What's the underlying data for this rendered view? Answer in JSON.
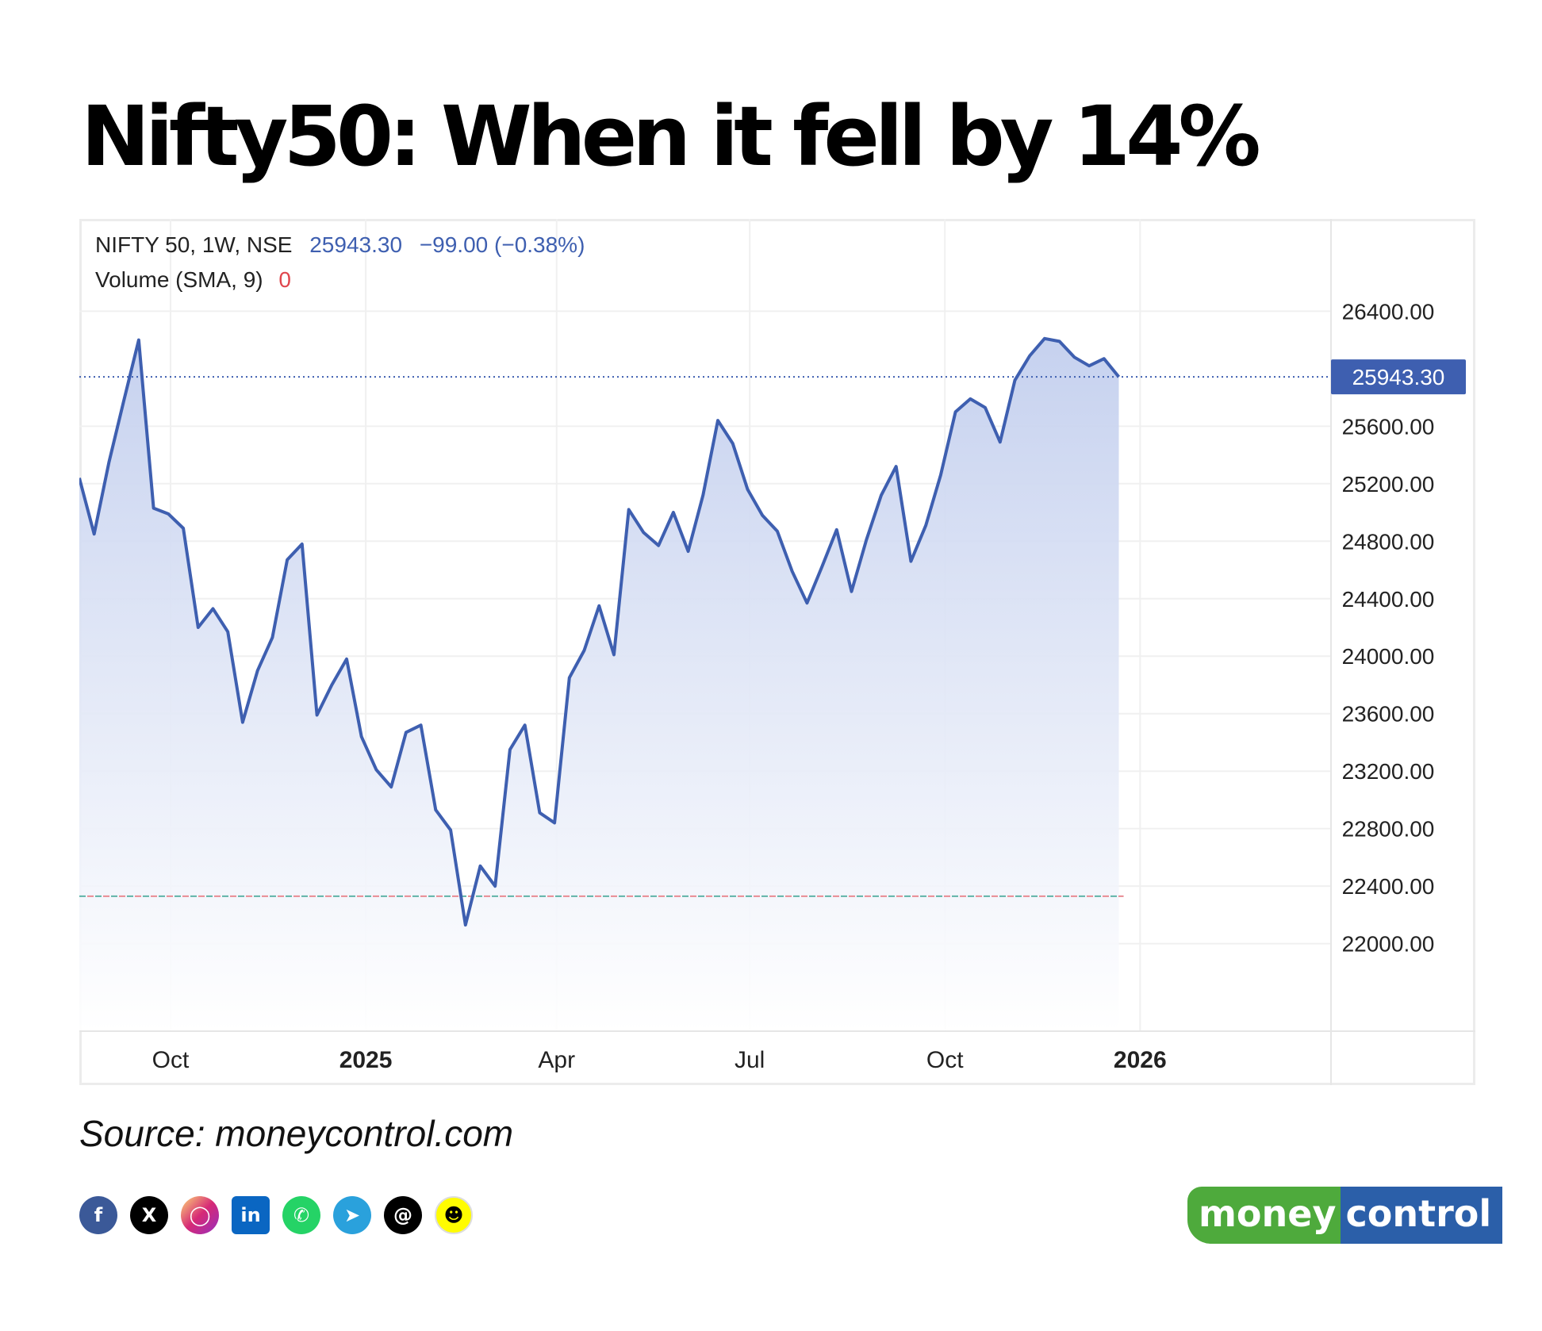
{
  "title": "Nifty50: When it fell by 14%",
  "source": "Source: moneycontrol.com",
  "social_icons": [
    "facebook-icon",
    "x-icon",
    "instagram-icon",
    "linkedin-icon",
    "whatsapp-icon",
    "telegram-icon",
    "threads-icon",
    "snapchat-icon"
  ],
  "logo": {
    "part1": "money",
    "part2": "control"
  },
  "colors": {
    "line": "#3e5fb0",
    "fill_top": "#c8d3ee",
    "price_tag": "#3e5fb0",
    "volume_value": "#e0464d",
    "logo_green": "#4eaa3c",
    "logo_blue": "#2b5fa9"
  },
  "chart_data": {
    "type": "area",
    "header": {
      "symbol": "NIFTY 50, 1W, NSE",
      "price": "25943.30",
      "change": "−99.00 (−0.38%)",
      "volume_label": "Volume (SMA, 9)",
      "volume_value": "0"
    },
    "last_price_label": "25943.30",
    "ylim": [
      21700,
      26700
    ],
    "yticks": [
      "26400.00",
      "25600.00",
      "25200.00",
      "24800.00",
      "24400.00",
      "24000.00",
      "23600.00",
      "23200.00",
      "22800.00",
      "22400.00",
      "22000.00"
    ],
    "ytick_values": [
      26400,
      25600,
      25200,
      24800,
      24400,
      24000,
      23600,
      23200,
      22800,
      22400,
      22000
    ],
    "xticks": [
      {
        "label": "Oct",
        "date": "2024-10-01",
        "bold": false
      },
      {
        "label": "2025",
        "date": "2025-01-01",
        "bold": true
      },
      {
        "label": "Apr",
        "date": "2025-04-01",
        "bold": false
      },
      {
        "label": "Jul",
        "date": "2025-07-01",
        "bold": false
      },
      {
        "label": "Oct",
        "date": "2025-10-01",
        "bold": false
      },
      {
        "label": "2026",
        "date": "2026-01-01",
        "bold": true
      }
    ],
    "x_range": [
      "2024-08-19",
      "2026-04-01"
    ],
    "volume_line_value": 22330,
    "series": [
      {
        "dates": [
          "2024-08-19",
          "2024-08-26",
          "2024-09-02",
          "2024-09-09",
          "2024-09-16",
          "2024-09-23",
          "2024-09-30",
          "2024-10-07",
          "2024-10-14",
          "2024-10-21",
          "2024-10-28",
          "2024-11-04",
          "2024-11-11",
          "2024-11-18",
          "2024-11-25",
          "2024-12-02",
          "2024-12-09",
          "2024-12-16",
          "2024-12-23",
          "2024-12-30",
          "2025-01-06",
          "2025-01-13",
          "2025-01-20",
          "2025-01-27",
          "2025-02-03",
          "2025-02-10",
          "2025-02-17",
          "2025-02-24",
          "2025-03-03",
          "2025-03-10",
          "2025-03-17",
          "2025-03-24",
          "2025-03-31",
          "2025-04-07",
          "2025-04-14",
          "2025-04-21",
          "2025-04-28",
          "2025-05-05",
          "2025-05-12",
          "2025-05-19",
          "2025-05-26",
          "2025-06-02",
          "2025-06-09",
          "2025-06-16",
          "2025-06-23",
          "2025-06-30",
          "2025-07-07",
          "2025-07-14",
          "2025-07-21",
          "2025-07-28",
          "2025-08-04",
          "2025-08-11",
          "2025-08-18",
          "2025-08-25",
          "2025-09-01",
          "2025-09-08",
          "2025-09-15",
          "2025-09-22",
          "2025-09-29",
          "2025-10-06",
          "2025-10-13",
          "2025-10-20",
          "2025-10-27",
          "2025-11-03",
          "2025-11-10",
          "2025-11-17",
          "2025-11-24",
          "2025-12-01",
          "2025-12-08",
          "2025-12-15",
          "2025-12-22"
        ],
        "values": [
          25240,
          24850,
          25350,
          25780,
          26200,
          25030,
          24990,
          24890,
          24200,
          24330,
          24170,
          23540,
          23900,
          24130,
          24670,
          24780,
          23590,
          23800,
          23980,
          23440,
          23210,
          23090,
          23470,
          23520,
          22930,
          22790,
          22130,
          22540,
          22400,
          23350,
          23520,
          22910,
          22840,
          23850,
          24040,
          24350,
          24010,
          25020,
          24860,
          24770,
          25000,
          24730,
          25120,
          25640,
          25480,
          25160,
          24980,
          24870,
          24590,
          24370,
          24620,
          24880,
          24450,
          24810,
          25120,
          25320,
          24660,
          24910,
          25260,
          25700,
          25790,
          25730,
          25490,
          25920,
          26090,
          26210,
          26190,
          26080,
          26020,
          26070,
          25943.3
        ]
      }
    ]
  }
}
